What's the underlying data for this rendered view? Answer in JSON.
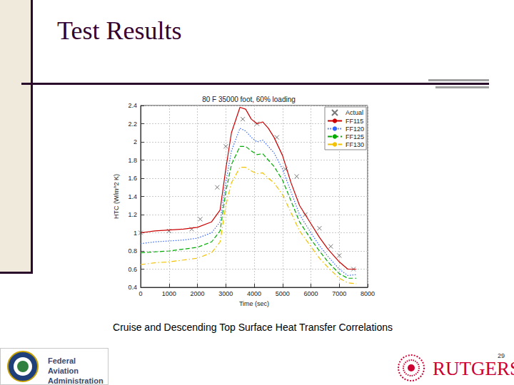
{
  "slide": {
    "title": "Test Results",
    "caption": "Cruise and Descending Top Surface Heat Transfer Correlations",
    "page": "29",
    "logos": [
      "Federal Aviation Administration",
      "RUTGERS"
    ]
  },
  "chart_data": {
    "type": "line",
    "title": "80 F 35000 foot, 60% loading",
    "xlabel": "Time (sec)",
    "ylabel": "HTC (W/m^2 K)",
    "x": [
      0,
      500,
      1000,
      1500,
      2000,
      2500,
      2800,
      3000,
      3200,
      3500,
      3700,
      3900,
      4100,
      4300,
      4500,
      4700,
      5000,
      5300,
      5600,
      6000,
      6300,
      6600,
      7000,
      7300,
      7600
    ],
    "series": [
      {
        "name": "Actual",
        "type": "scatter",
        "marker": "x",
        "color": "#555555",
        "x": [
          0,
          1000,
          1800,
          2100,
          2700,
          3000,
          3600,
          4100,
          4800,
          5100,
          5500,
          5800,
          6300,
          6700,
          7000,
          7500
        ],
        "values": [
          1.0,
          1.02,
          1.04,
          1.15,
          1.5,
          1.95,
          2.25,
          2.2,
          2.05,
          1.7,
          1.62,
          1.2,
          1.05,
          0.85,
          0.75,
          0.6
        ]
      },
      {
        "name": "FF115",
        "type": "line",
        "marker": "none",
        "line_style": "solid",
        "color": "#cc0000",
        "values": [
          1.0,
          1.02,
          1.03,
          1.04,
          1.06,
          1.12,
          1.25,
          1.7,
          2.1,
          2.38,
          2.36,
          2.25,
          2.2,
          2.22,
          2.15,
          2.05,
          1.85,
          1.55,
          1.3,
          1.1,
          0.95,
          0.82,
          0.68,
          0.6,
          0.6
        ]
      },
      {
        "name": "FF120",
        "type": "line",
        "marker": "none",
        "line_style": "dotted",
        "color": "#3366ff",
        "values": [
          0.88,
          0.9,
          0.91,
          0.92,
          0.94,
          1.0,
          1.12,
          1.55,
          1.9,
          2.15,
          2.12,
          2.05,
          2.0,
          2.02,
          1.95,
          1.88,
          1.7,
          1.45,
          1.2,
          1.0,
          0.86,
          0.74,
          0.6,
          0.53,
          0.54
        ]
      },
      {
        "name": "FF125",
        "type": "line",
        "marker": "none",
        "line_style": "dashed",
        "color": "#00aa00",
        "values": [
          0.78,
          0.79,
          0.8,
          0.82,
          0.84,
          0.9,
          1.02,
          1.45,
          1.75,
          1.95,
          1.95,
          1.9,
          1.86,
          1.87,
          1.8,
          1.73,
          1.58,
          1.35,
          1.12,
          0.93,
          0.8,
          0.68,
          0.55,
          0.5,
          0.5
        ]
      },
      {
        "name": "FF130",
        "type": "line",
        "marker": "none",
        "line_style": "dashdot",
        "color": "#f2c200",
        "values": [
          0.65,
          0.67,
          0.68,
          0.7,
          0.72,
          0.78,
          0.9,
          1.3,
          1.55,
          1.72,
          1.72,
          1.68,
          1.65,
          1.66,
          1.6,
          1.55,
          1.42,
          1.22,
          1.02,
          0.85,
          0.72,
          0.62,
          0.5,
          0.45,
          0.44
        ]
      }
    ],
    "xlim": [
      0,
      8000
    ],
    "xticks": [
      0,
      1000,
      2000,
      3000,
      4000,
      5000,
      6000,
      7000,
      8000
    ],
    "ylim": [
      0.4,
      2.4
    ],
    "yticks": [
      0.4,
      0.6,
      0.8,
      1,
      1.2,
      1.4,
      1.6,
      1.8,
      2,
      2.2,
      2.4
    ],
    "grid": true,
    "legend": "top-right"
  }
}
